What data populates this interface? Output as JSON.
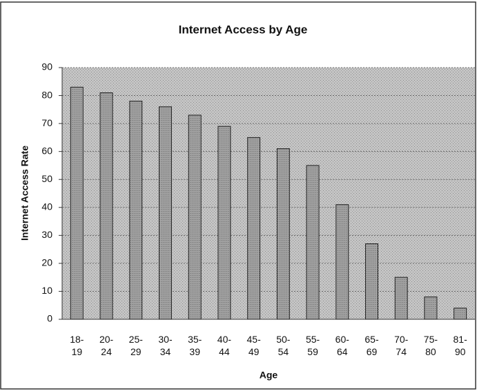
{
  "chart_data": {
    "type": "bar",
    "title": "Internet Access by Age",
    "x_label": "Age",
    "y_label": "Internet Access Rate",
    "categories": [
      "18-19",
      "20-24",
      "25-29",
      "30-34",
      "35-39",
      "40-44",
      "45-49",
      "50-54",
      "55-59",
      "60-64",
      "65-69",
      "70-74",
      "75-80",
      "81-90"
    ],
    "values": [
      83,
      81,
      78,
      76,
      73,
      69,
      65,
      61,
      55,
      41,
      27,
      15,
      8,
      4
    ],
    "color": "#9a9a9a",
    "ylim": [
      0,
      90
    ],
    "yticks": [
      0,
      10,
      20,
      30,
      40,
      50,
      60,
      70,
      80,
      90
    ],
    "grid": true
  }
}
